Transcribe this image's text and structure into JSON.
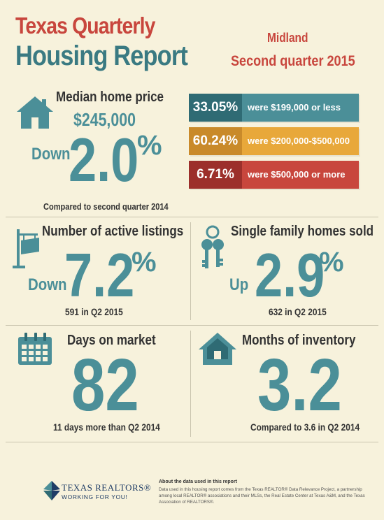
{
  "header": {
    "title_line1": "Texas Quarterly",
    "title_line2": "Housing Report",
    "city": "Midland",
    "period": "Second quarter 2015"
  },
  "median": {
    "label": "Median home price",
    "price": "$245,000",
    "direction": "Down",
    "change": "2.0",
    "pct": "%",
    "note": "Compared to second quarter 2014"
  },
  "price_bands": [
    {
      "percent": "33.05%",
      "desc": "were $199,000 or less",
      "dark": "#2f6b74",
      "light": "#4b8f98"
    },
    {
      "percent": "60.24%",
      "desc": "were $200,000-$500,000",
      "dark": "#c98a2a",
      "light": "#e8a83a"
    },
    {
      "percent": "6.71%",
      "desc": "were $500,000 or more",
      "dark": "#9c2f2b",
      "light": "#c8463d"
    }
  ],
  "listings": {
    "label": "Number of active listings",
    "direction": "Down",
    "change": "7.2",
    "pct": "%",
    "note": "591 in Q2 2015"
  },
  "sold": {
    "label": "Single family homes sold",
    "direction": "Up",
    "change": "2.9",
    "pct": "%",
    "note": "632 in Q2 2015"
  },
  "days": {
    "label": "Days on market",
    "value": "82",
    "note": "11 days more than Q2 2014"
  },
  "inventory": {
    "label": "Months of inventory",
    "value": "3.2",
    "note": "Compared to 3.6 in Q2 2014"
  },
  "footer": {
    "logo_line1": "TEXAS REALTORS®",
    "logo_line2": "WORKING FOR YOU!",
    "about_title": "About the data used in this report",
    "about_text": "Data used in this housing report comes from the Texas REALTOR® Data Relevance Project, a partnership among local REALTOR® associations and their MLSs, the Real Estate Center at Texas A&M, and the Texas Association of REALTORS®."
  },
  "colors": {
    "teal": "#4b8f98",
    "red": "#c8463d",
    "gold": "#e8a83a",
    "background": "#f7f2dc"
  },
  "icons": [
    "house-icon",
    "for-sale-sign-icon",
    "keys-icon",
    "calendar-icon",
    "home-inventory-icon",
    "texas-realtors-logo"
  ]
}
